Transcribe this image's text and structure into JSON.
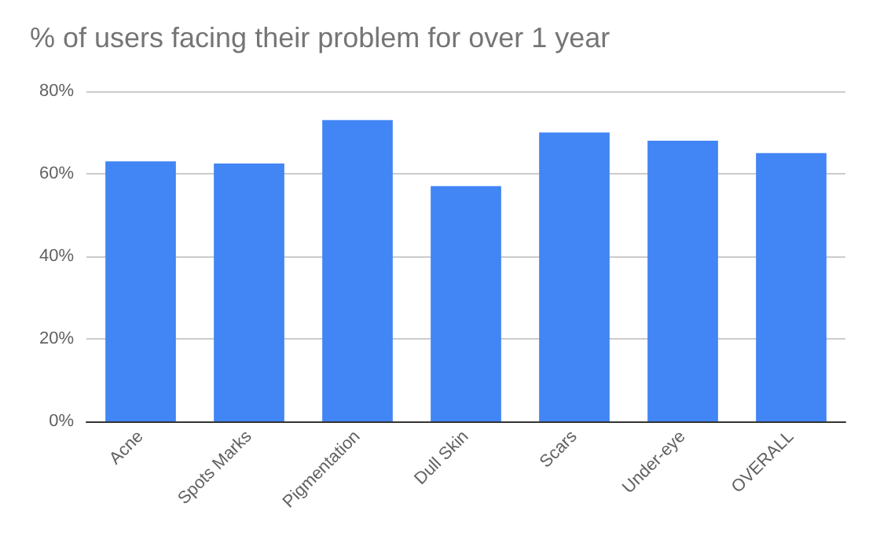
{
  "chart_data": {
    "type": "bar",
    "title": "% of users facing their problem for over 1 year",
    "categories": [
      "Acne",
      "Spots Marks",
      "Pigmentation",
      "Dull Skin",
      "Scars",
      "Under-eye",
      "OVERALL"
    ],
    "values": [
      63,
      62.5,
      73,
      57,
      70,
      68,
      65
    ],
    "color": "#4285f4",
    "ylim": [
      0,
      80
    ],
    "yticks": [
      {
        "value": 0,
        "label": "0%"
      },
      {
        "value": 20,
        "label": "20%"
      },
      {
        "value": 40,
        "label": "40%"
      },
      {
        "value": 60,
        "label": "60%"
      },
      {
        "value": 80,
        "label": "80%"
      }
    ],
    "grid": "y"
  }
}
